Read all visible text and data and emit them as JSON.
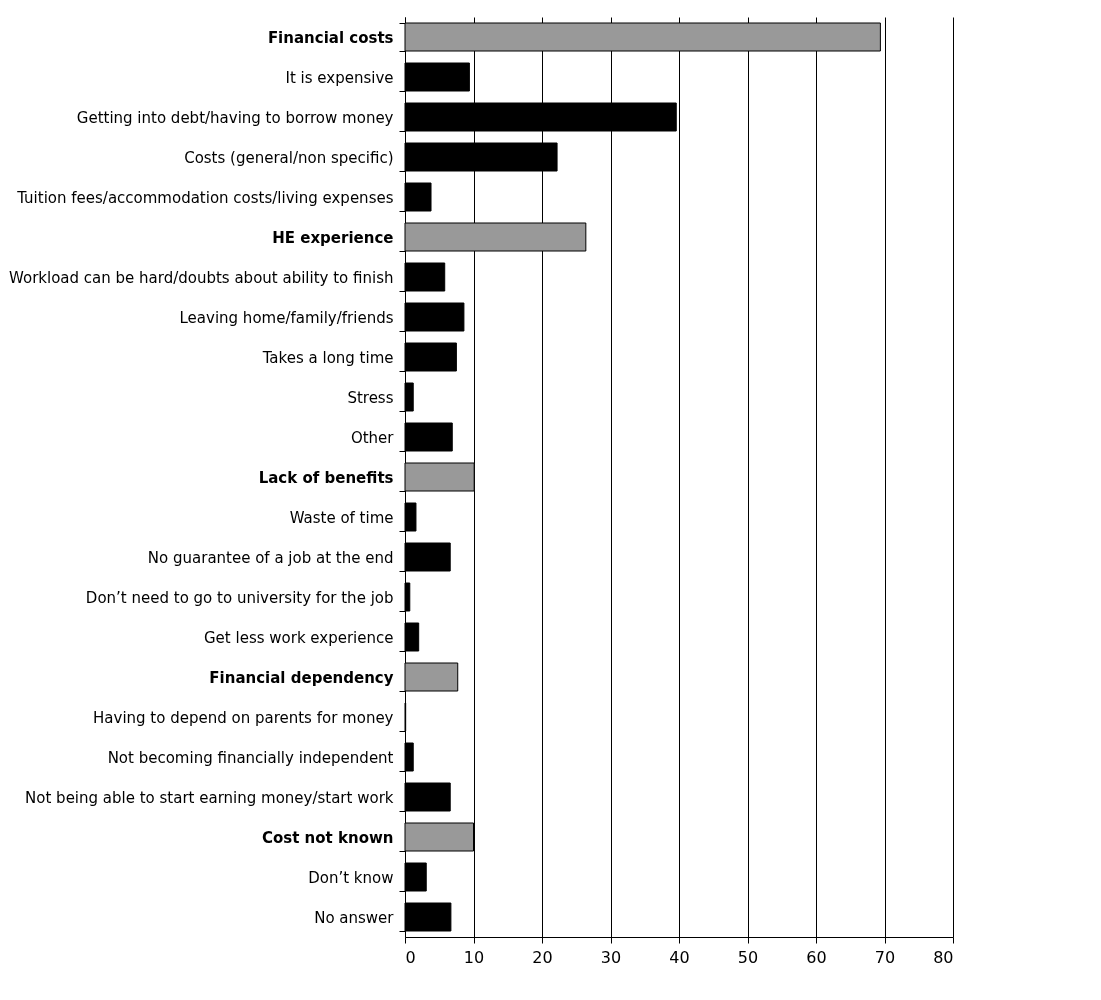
{
  "chart_data": {
    "type": "bar",
    "orientation": "horizontal",
    "categories": [
      "Financial costs",
      "It is expensive",
      "Getting into debt/having to borrow money",
      "Costs (general/non specific)",
      "Tuition fees/accommodation costs/living expenses",
      "HE experience",
      "Workload can be hard/doubts about ability to finish",
      "Leaving home/family/friends",
      "Takes a long time",
      "Stress",
      "Other",
      "Lack of benefits",
      "Waste of time",
      "No guarantee of a job at the end",
      "Don’t need to go to university for the job",
      "Get less work experience",
      "Financial dependency",
      "Having to depend on parents for money",
      "Not becoming financially independent",
      "Not being able to start earning money/start work",
      "Cost not known",
      "Don’t know",
      "No answer"
    ],
    "values": [
      69.4,
      9.4,
      39.6,
      22.2,
      3.8,
      26.4,
      5.8,
      8.6,
      7.5,
      1.2,
      6.9,
      10.1,
      1.6,
      6.6,
      0.7,
      2.0,
      7.7,
      0.1,
      1.2,
      6.6,
      10.0,
      3.1,
      6.7
    ],
    "colors": [
      "#999999",
      "#000000",
      "#000000",
      "#000000",
      "#000000",
      "#999999",
      "#000000",
      "#000000",
      "#000000",
      "#000000",
      "#000000",
      "#999999",
      "#000000",
      "#000000",
      "#000000",
      "#000000",
      "#999999",
      "#000000",
      "#000000",
      "#000000",
      "#999999",
      "#000000",
      "#000000"
    ],
    "xlim": [
      0,
      80
    ],
    "xticks": [
      0,
      10,
      20,
      30,
      40,
      50,
      60,
      70,
      80
    ],
    "grid": "x"
  }
}
